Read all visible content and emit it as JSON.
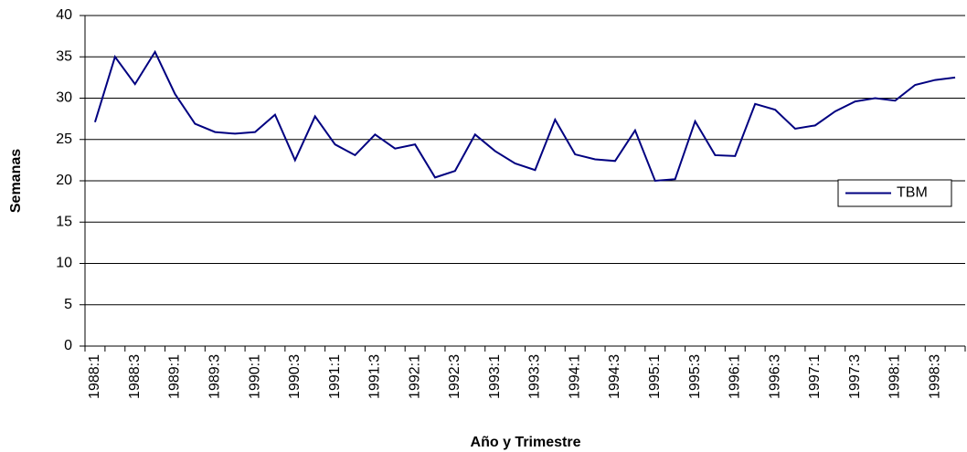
{
  "chart_data": {
    "type": "line",
    "y_label": "Semanas",
    "x_label": "Año y Trimestre",
    "categories": [
      "1988:1",
      null,
      "1988:3",
      null,
      "1989:1",
      null,
      "1989:3",
      null,
      "1990:1",
      null,
      "1990:3",
      null,
      "1991:1",
      null,
      "1991:3",
      null,
      "1992:1",
      null,
      "1992:3",
      null,
      "1993:1",
      null,
      "1993:3",
      null,
      "1994:1",
      null,
      "1994:3",
      null,
      "1995:1",
      null,
      "1995:3",
      null,
      "1996:1",
      null,
      "1996:3",
      null,
      "1997:1",
      null,
      "1997:3",
      null,
      "1998:1",
      null,
      "1998:3",
      null
    ],
    "series": [
      {
        "name": "TBM",
        "color": "#000080",
        "values": [
          27.1,
          35.0,
          31.7,
          35.6,
          30.5,
          26.9,
          25.9,
          25.7,
          25.9,
          28.0,
          22.5,
          27.8,
          24.4,
          23.1,
          25.6,
          23.9,
          24.4,
          20.4,
          21.2,
          25.6,
          23.6,
          22.1,
          21.3,
          27.4,
          23.2,
          22.6,
          22.4,
          26.1,
          20.0,
          20.2,
          27.2,
          23.1,
          23.0,
          29.3,
          28.6,
          26.3,
          26.7,
          28.4,
          29.6,
          30.0,
          29.7,
          31.6,
          32.2,
          32.5
        ]
      }
    ],
    "ylim": [
      0,
      40
    ],
    "yticks": [
      0,
      5,
      10,
      15,
      20,
      25,
      30,
      35,
      40
    ],
    "grid": true,
    "legend": "right"
  }
}
